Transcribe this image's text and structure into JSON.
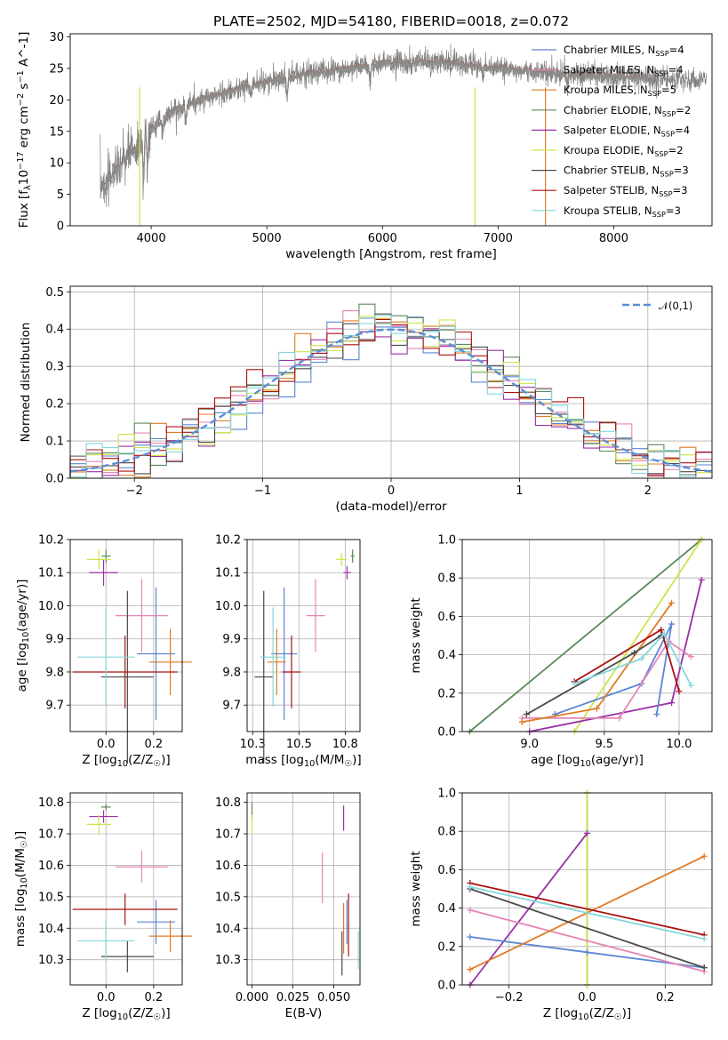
{
  "figure_title": "PLATE=2502, MJD=54180, FIBERID=0018, z=0.072",
  "colors": {
    "Chabrier MILES": "#5b85d6",
    "Salpeter MILES": "#e685b6",
    "Kroupa MILES": "#e07b24",
    "Chabrier ELODIE": "#5c8a5c",
    "Salpeter ELODIE": "#9b30a8",
    "Kroupa ELODIE": "#cfe34a",
    "Chabrier STELIB": "#4a4a4a",
    "Salpeter STELIB": "#aa1111",
    "Kroupa STELIB": "#86d6dc",
    "data": "#808080",
    "gaussian": "#5b8fd6"
  },
  "chart_data": [
    {
      "type": "line",
      "id": "spectrum",
      "xlabel": "wavelength [Angstrom, rest frame]",
      "ylabel": "Flux [f_λ10^-17 erg cm^-2 s^-1 A^-1]",
      "xlim": [
        3300,
        8850
      ],
      "ylim": [
        0,
        30.5
      ],
      "xticks": [
        4000,
        5000,
        6000,
        7000,
        8000
      ],
      "yticks": [
        0,
        5,
        10,
        15,
        20,
        25,
        30
      ],
      "legend": [
        "Chabrier MILES, N_SSP=4",
        "Salpeter MILES, N_SSP=4",
        "Kroupa MILES, N_SSP=5",
        "Chabrier ELODIE, N_SSP=2",
        "Salpeter ELODIE, N_SSP=4",
        "Kroupa ELODIE, N_SSP=2",
        "Chabrier STELIB, N_SSP=3",
        "Salpeter STELIB, N_SSP=3",
        "Kroupa STELIB, N_SSP=3"
      ],
      "legend_position": "top-right",
      "continuum": {
        "x": [
          3560,
          3700,
          3900,
          4000,
          4200,
          4500,
          4800,
          5000,
          5300,
          5700,
          6000,
          6300,
          6600,
          7000,
          7400,
          7700,
          8000,
          8300,
          8800
        ],
        "y": [
          6,
          9,
          13,
          15.5,
          18.5,
          20.5,
          22,
          23,
          24,
          25,
          25.8,
          26,
          26,
          25,
          24.5,
          24,
          23.8,
          23.5,
          23
        ]
      },
      "dips": [
        {
          "x": 3934,
          "depth": 6
        },
        {
          "x": 3968,
          "depth": 5
        },
        {
          "x": 4102,
          "depth": 2
        },
        {
          "x": 4300,
          "depth": 3
        },
        {
          "x": 4861,
          "depth": 2
        },
        {
          "x": 5175,
          "depth": 3
        },
        {
          "x": 5893,
          "depth": 3
        },
        {
          "x": 6870,
          "depth": 2
        },
        {
          "x": 7600,
          "depth": 2
        }
      ]
    },
    {
      "type": "step",
      "id": "residuals",
      "xlabel": "(data-model)/error",
      "ylabel": "Normed distribution",
      "xlim": [
        -2.5,
        2.5
      ],
      "ylim": [
        0,
        0.515
      ],
      "xticks": [
        -2,
        -1,
        0,
        1,
        2
      ],
      "yticks": [
        0.0,
        0.1,
        0.2,
        0.3,
        0.4,
        0.5
      ],
      "grid": true,
      "bins": 40,
      "legend": [
        "𝒩(0,1)"
      ],
      "legend_position": "top-right"
    },
    {
      "type": "errorbar",
      "id": "age-vs-Z",
      "xlabel": "Z [log10(Z/Z☉)]",
      "ylabel": "age  [log10(age/yr)]",
      "xlim": [
        -0.15,
        0.32
      ],
      "ylim": [
        9.62,
        10.2
      ],
      "xticks": [
        0.0,
        0.2
      ],
      "yticks": [
        9.7,
        9.8,
        9.9,
        10.0,
        10.1,
        10.2
      ],
      "grid": true,
      "points": [
        {
          "model": "Chabrier MILES",
          "x": 0.21,
          "y": 9.855,
          "xerr": 0.08,
          "yerr": 0.2
        },
        {
          "model": "Salpeter MILES",
          "x": 0.15,
          "y": 9.97,
          "xerr": 0.11,
          "yerr": 0.11
        },
        {
          "model": "Kroupa MILES",
          "x": 0.27,
          "y": 9.83,
          "xerr": 0.09,
          "yerr": 0.1
        },
        {
          "model": "Chabrier ELODIE",
          "x": 0.0,
          "y": 10.15,
          "xerr": 0.02,
          "yerr": 0.02
        },
        {
          "model": "Salpeter ELODIE",
          "x": -0.01,
          "y": 10.1,
          "xerr": 0.06,
          "yerr": 0.04
        },
        {
          "model": "Kroupa ELODIE",
          "x": -0.03,
          "y": 10.14,
          "xerr": 0.05,
          "yerr": 0.03
        },
        {
          "model": "Chabrier STELIB",
          "x": 0.09,
          "y": 9.785,
          "xerr": 0.11,
          "yerr": 0.26
        },
        {
          "model": "Salpeter STELIB",
          "x": 0.08,
          "y": 9.8,
          "xerr": 0.22,
          "yerr": 0.11
        },
        {
          "model": "Kroupa STELIB",
          "x": 0.0,
          "y": 9.845,
          "xerr": 0.12,
          "yerr": 0.15
        }
      ]
    },
    {
      "type": "errorbar",
      "id": "age-vs-mass",
      "xlabel": "mass [log10(M/M☉)]",
      "ylabel": "",
      "xlim": [
        10.22,
        10.83
      ],
      "ylim": [
        9.62,
        10.2
      ],
      "xticks": [
        10.25,
        10.5,
        10.75
      ],
      "yticks": [
        9.7,
        9.8,
        9.9,
        10.0,
        10.1,
        10.2
      ],
      "grid": true,
      "points": [
        {
          "model": "Chabrier MILES",
          "x": 10.42,
          "y": 9.855,
          "xerr": 0.07,
          "yerr": 0.2
        },
        {
          "model": "Salpeter MILES",
          "x": 10.59,
          "y": 9.97,
          "xerr": 0.05,
          "yerr": 0.11
        },
        {
          "model": "Kroupa MILES",
          "x": 10.38,
          "y": 9.83,
          "xerr": 0.05,
          "yerr": 0.1
        },
        {
          "model": "Chabrier ELODIE",
          "x": 10.79,
          "y": 10.15,
          "xerr": 0.01,
          "yerr": 0.02
        },
        {
          "model": "Salpeter ELODIE",
          "x": 10.76,
          "y": 10.1,
          "xerr": 0.02,
          "yerr": 0.02
        },
        {
          "model": "Kroupa ELODIE",
          "x": 10.73,
          "y": 10.14,
          "xerr": 0.03,
          "yerr": 0.02
        },
        {
          "model": "Chabrier STELIB",
          "x": 10.31,
          "y": 9.785,
          "xerr": 0.05,
          "yerr": 0.26
        },
        {
          "model": "Salpeter STELIB",
          "x": 10.46,
          "y": 9.8,
          "xerr": 0.05,
          "yerr": 0.11
        },
        {
          "model": "Kroupa STELIB",
          "x": 10.36,
          "y": 9.845,
          "xerr": 0.07,
          "yerr": 0.15
        }
      ]
    },
    {
      "type": "line",
      "id": "mass-weight-vs-age",
      "xlabel": "age  [log10(age/yr)]",
      "ylabel": "mass weight",
      "xlim": [
        8.55,
        10.22
      ],
      "ylim": [
        0,
        1.0
      ],
      "xticks": [
        9.0,
        9.5,
        10.0
      ],
      "yticks": [
        0.0,
        0.2,
        0.4,
        0.6,
        0.8,
        1.0
      ],
      "grid": true,
      "series": [
        {
          "model": "Chabrier ELODIE",
          "x": [
            8.6,
            10.15
          ],
          "y": [
            0.0,
            1.0
          ]
        },
        {
          "model": "Kroupa ELODIE",
          "x": [
            9.3,
            10.15
          ],
          "y": [
            0.0,
            1.0
          ]
        },
        {
          "model": "Salpeter ELODIE",
          "x": [
            9.0,
            9.95,
            10.15
          ],
          "y": [
            0.0,
            0.15,
            0.79
          ]
        },
        {
          "model": "Chabrier MILES",
          "x": [
            9.17,
            9.75,
            9.95,
            9.85
          ],
          "y": [
            0.09,
            0.25,
            0.56,
            0.09
          ]
        },
        {
          "model": "Salpeter MILES",
          "x": [
            8.95,
            9.6,
            9.93,
            10.08
          ],
          "y": [
            0.07,
            0.07,
            0.47,
            0.39
          ]
        },
        {
          "model": "Kroupa MILES",
          "x": [
            8.95,
            9.45,
            9.95
          ],
          "y": [
            0.05,
            0.12,
            0.67
          ]
        },
        {
          "model": "Chabrier STELIB",
          "x": [
            8.98,
            9.7,
            9.88
          ],
          "y": [
            0.09,
            0.41,
            0.5
          ]
        },
        {
          "model": "Salpeter STELIB",
          "x": [
            9.3,
            9.88,
            10.0
          ],
          "y": [
            0.26,
            0.53,
            0.21
          ]
        },
        {
          "model": "Kroupa STELIB",
          "x": [
            9.3,
            9.75,
            9.9,
            10.08
          ],
          "y": [
            0.25,
            0.38,
            0.51,
            0.24
          ]
        }
      ]
    },
    {
      "type": "errorbar",
      "id": "mass-vs-Z",
      "xlabel": "Z [log10(Z/Z☉)]",
      "ylabel": "mass [log10(M/M☉)]",
      "xlim": [
        -0.15,
        0.32
      ],
      "ylim": [
        10.22,
        10.83
      ],
      "xticks": [
        0.0,
        0.2
      ],
      "yticks": [
        10.3,
        10.4,
        10.5,
        10.6,
        10.7,
        10.8
      ],
      "grid": true,
      "points": [
        {
          "model": "Chabrier MILES",
          "x": 0.21,
          "y": 10.42,
          "xerr": 0.08,
          "yerr": 0.07
        },
        {
          "model": "Salpeter MILES",
          "x": 0.15,
          "y": 10.595,
          "xerr": 0.11,
          "yerr": 0.05
        },
        {
          "model": "Kroupa MILES",
          "x": 0.27,
          "y": 10.375,
          "xerr": 0.09,
          "yerr": 0.05
        },
        {
          "model": "Chabrier ELODIE",
          "x": 0.0,
          "y": 10.785,
          "xerr": 0.02,
          "yerr": 0.01
        },
        {
          "model": "Salpeter ELODIE",
          "x": -0.01,
          "y": 10.755,
          "xerr": 0.06,
          "yerr": 0.02
        },
        {
          "model": "Kroupa ELODIE",
          "x": -0.03,
          "y": 10.73,
          "xerr": 0.05,
          "yerr": 0.03
        },
        {
          "model": "Chabrier STELIB",
          "x": 0.09,
          "y": 10.31,
          "xerr": 0.11,
          "yerr": 0.05
        },
        {
          "model": "Salpeter STELIB",
          "x": 0.08,
          "y": 10.46,
          "xerr": 0.22,
          "yerr": 0.05
        },
        {
          "model": "Kroupa STELIB",
          "x": 0.0,
          "y": 10.36,
          "xerr": 0.12,
          "yerr": 0.07
        }
      ]
    },
    {
      "type": "errorbar",
      "id": "mass-vs-EBV",
      "xlabel": "E(B-V)",
      "ylabel": "",
      "xlim": [
        -0.003,
        0.066
      ],
      "ylim": [
        10.22,
        10.83
      ],
      "xticks": [
        0.0,
        0.025,
        0.05
      ],
      "yticks": [
        10.3,
        10.4,
        10.5,
        10.6,
        10.7,
        10.8
      ],
      "grid": true,
      "points": [
        {
          "model": "Chabrier MILES",
          "x": 0.058,
          "y": 10.42,
          "xerr": 0.0,
          "yerr": 0.07
        },
        {
          "model": "Salpeter MILES",
          "x": 0.043,
          "y": 10.56,
          "xerr": 0.0,
          "yerr": 0.08
        },
        {
          "model": "Kroupa MILES",
          "x": 0.056,
          "y": 10.4,
          "xerr": 0.0,
          "yerr": 0.08
        },
        {
          "model": "Chabrier ELODIE",
          "x": 0.0,
          "y": 10.77,
          "xerr": 0.0,
          "yerr": 0.03
        },
        {
          "model": "Salpeter ELODIE",
          "x": 0.056,
          "y": 10.75,
          "xerr": 0.0,
          "yerr": 0.04
        },
        {
          "model": "Kroupa ELODIE",
          "x": 0.0,
          "y": 10.73,
          "xerr": 0.0,
          "yerr": 0.03
        },
        {
          "model": "Chabrier STELIB",
          "x": 0.055,
          "y": 10.32,
          "xerr": 0.0,
          "yerr": 0.07
        },
        {
          "model": "Salpeter STELIB",
          "x": 0.059,
          "y": 10.41,
          "xerr": 0.0,
          "yerr": 0.1
        },
        {
          "model": "Kroupa STELIB",
          "x": 0.065,
          "y": 10.33,
          "xerr": 0.0,
          "yerr": 0.06
        }
      ]
    },
    {
      "type": "line",
      "id": "mass-weight-vs-Z",
      "xlabel": "Z [log10(Z/Z☉)]",
      "ylabel": "mass weight",
      "xlim": [
        -0.32,
        0.32
      ],
      "ylim": [
        0,
        1.0
      ],
      "xticks": [
        -0.2,
        0.0,
        0.2
      ],
      "yticks": [
        0.0,
        0.2,
        0.4,
        0.6,
        0.8,
        1.0
      ],
      "grid": true,
      "series": [
        {
          "model": "Chabrier ELODIE",
          "x": [
            0.0,
            0.0
          ],
          "y": [
            0.0,
            1.0
          ]
        },
        {
          "model": "Kroupa ELODIE",
          "x": [
            0.0,
            0.0
          ],
          "y": [
            0.0,
            1.0
          ]
        },
        {
          "model": "Salpeter ELODIE",
          "x": [
            -0.3,
            0.0
          ],
          "y": [
            0.0,
            0.79
          ]
        },
        {
          "model": "Chabrier MILES",
          "x": [
            -0.3,
            0.0,
            0.3
          ],
          "y": [
            0.25,
            0.17,
            0.09
          ]
        },
        {
          "model": "Salpeter MILES",
          "x": [
            -0.3,
            0.3
          ],
          "y": [
            0.39,
            0.07
          ]
        },
        {
          "model": "Kroupa MILES",
          "x": [
            -0.3,
            0.3
          ],
          "y": [
            0.08,
            0.67
          ]
        },
        {
          "model": "Chabrier STELIB",
          "x": [
            -0.3,
            0.3
          ],
          "y": [
            0.5,
            0.09
          ]
        },
        {
          "model": "Salpeter STELIB",
          "x": [
            -0.3,
            0.3
          ],
          "y": [
            0.53,
            0.26
          ]
        },
        {
          "model": "Kroupa STELIB",
          "x": [
            -0.3,
            0.3
          ],
          "y": [
            0.51,
            0.24
          ]
        }
      ]
    }
  ]
}
